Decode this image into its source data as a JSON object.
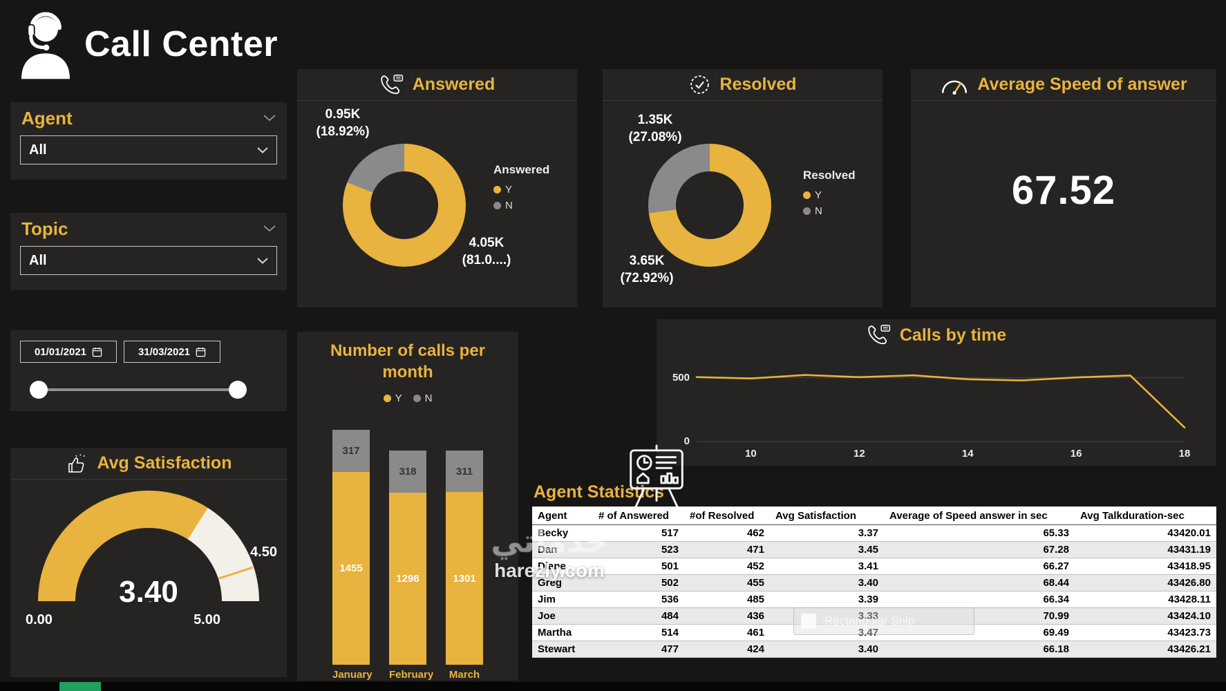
{
  "colors": {
    "accent": "#E8B33E",
    "slice_gray": "#8A8A8A",
    "card_bg": "#262422",
    "page_bg": "#171615"
  },
  "header": {
    "app_title": "Call Center"
  },
  "filters": {
    "agent": {
      "label": "Agent",
      "value": "All"
    },
    "topic": {
      "label": "Topic",
      "value": "All"
    }
  },
  "date_filter": {
    "start": "01/01/2021",
    "end": "31/03/2021"
  },
  "watermark": {
    "arabic": "خدماتي",
    "site": "harezly.com"
  },
  "snip_tooltip": {
    "label": "Rectangular Snip"
  },
  "chart_data": [
    {
      "id": "answered_donut",
      "type": "pie",
      "title": "Answered",
      "legend_title": "Answered",
      "slices": [
        {
          "label": "Y",
          "pct": 81.08,
          "color": "#E8B33E",
          "callout_value": "4.05K",
          "callout_pct": "(81.0....)"
        },
        {
          "label": "N",
          "pct": 18.92,
          "color": "#8A8A8A",
          "callout_value": "0.95K",
          "callout_pct": "(18.92%)"
        }
      ]
    },
    {
      "id": "resolved_donut",
      "type": "pie",
      "title": "Resolved",
      "legend_title": "Resolved",
      "slices": [
        {
          "label": "Y",
          "pct": 72.92,
          "color": "#E8B33E",
          "callout_value": "3.65K",
          "callout_pct": "(72.92%)"
        },
        {
          "label": "N",
          "pct": 27.08,
          "color": "#8A8A8A",
          "callout_value": "1.35K",
          "callout_pct": "(27.08%)"
        }
      ]
    },
    {
      "id": "avg_speed",
      "type": "kpi",
      "title": "Average Speed of answer",
      "value": "67.52"
    },
    {
      "id": "avg_satisfaction",
      "type": "gauge",
      "title": "Avg Satisfaction",
      "value": 3.4,
      "min": 0,
      "max": 5,
      "target": 4.5,
      "labels": {
        "value": "3.40",
        "min": "0.00",
        "max": "5.00",
        "target": "4.50"
      }
    },
    {
      "id": "calls_per_month",
      "type": "bar",
      "stacked": true,
      "title": "Number of calls per month",
      "categories": [
        "January",
        "February",
        "March"
      ],
      "series": [
        {
          "name": "Y",
          "color": "#E8B33E",
          "values": [
            1455,
            1298,
            1301
          ]
        },
        {
          "name": "N",
          "color": "#8A8A8A",
          "values": [
            317,
            318,
            311
          ]
        }
      ]
    },
    {
      "id": "calls_by_time",
      "type": "line",
      "title": "Calls by time",
      "x": [
        9,
        10,
        11,
        12,
        13,
        14,
        15,
        16,
        17,
        18
      ],
      "values": [
        505,
        494,
        521,
        504,
        518,
        488,
        478,
        502,
        517,
        110
      ],
      "x_ticks": [
        10,
        12,
        14,
        16,
        18
      ],
      "y_ticks": [
        500,
        0
      ],
      "ylim": [
        0,
        660
      ],
      "color": "#E8B33E"
    },
    {
      "id": "agent_statistics",
      "type": "table",
      "title": "Agent Statistics",
      "columns": [
        "Agent",
        "# of Answered",
        "#of Resolved",
        "Avg Satisfaction",
        "Average of Speed answer in sec",
        "Avg Talkduration-sec"
      ],
      "rows": [
        [
          "Becky",
          "517",
          "462",
          "3.37",
          "65.33",
          "43420.01"
        ],
        [
          "Dan",
          "523",
          "471",
          "3.45",
          "67.28",
          "43431.19"
        ],
        [
          "Diane",
          "501",
          "452",
          "3.41",
          "66.27",
          "43418.95"
        ],
        [
          "Greg",
          "502",
          "455",
          "3.40",
          "68.44",
          "43426.80"
        ],
        [
          "Jim",
          "536",
          "485",
          "3.39",
          "66.34",
          "43428.11"
        ],
        [
          "Joe",
          "484",
          "436",
          "3.33",
          "70.99",
          "43424.10"
        ],
        [
          "Martha",
          "514",
          "461",
          "3.47",
          "69.49",
          "43423.73"
        ],
        [
          "Stewart",
          "477",
          "424",
          "3.40",
          "66.18",
          "43426.21"
        ]
      ]
    }
  ]
}
